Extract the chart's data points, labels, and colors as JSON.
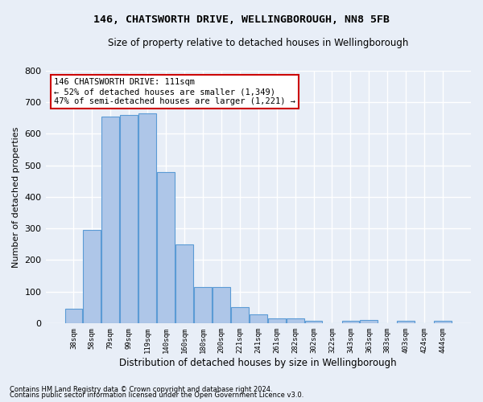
{
  "title": "146, CHATSWORTH DRIVE, WELLINGBOROUGH, NN8 5FB",
  "subtitle": "Size of property relative to detached houses in Wellingborough",
  "xlabel": "Distribution of detached houses by size in Wellingborough",
  "ylabel": "Number of detached properties",
  "footnote1": "Contains HM Land Registry data © Crown copyright and database right 2024.",
  "footnote2": "Contains public sector information licensed under the Open Government Licence v3.0.",
  "categories": [
    "38sqm",
    "58sqm",
    "79sqm",
    "99sqm",
    "119sqm",
    "140sqm",
    "160sqm",
    "180sqm",
    "200sqm",
    "221sqm",
    "241sqm",
    "261sqm",
    "282sqm",
    "302sqm",
    "322sqm",
    "343sqm",
    "363sqm",
    "383sqm",
    "403sqm",
    "424sqm",
    "444sqm"
  ],
  "values": [
    45,
    295,
    655,
    660,
    665,
    480,
    250,
    115,
    115,
    50,
    28,
    15,
    15,
    8,
    0,
    8,
    10,
    0,
    8,
    0,
    8
  ],
  "bar_color": "#aec6e8",
  "bar_edge_color": "#5b9bd5",
  "annotation_text": "146 CHATSWORTH DRIVE: 111sqm\n← 52% of detached houses are smaller (1,349)\n47% of semi-detached houses are larger (1,221) →",
  "annotation_box_color": "#ffffff",
  "annotation_box_edge": "#cc0000",
  "bg_color": "#e8eef7",
  "plot_bg_color": "#e8eef7",
  "grid_color": "#ffffff",
  "ylim": [
    0,
    800
  ],
  "yticks": [
    0,
    100,
    200,
    300,
    400,
    500,
    600,
    700,
    800
  ]
}
